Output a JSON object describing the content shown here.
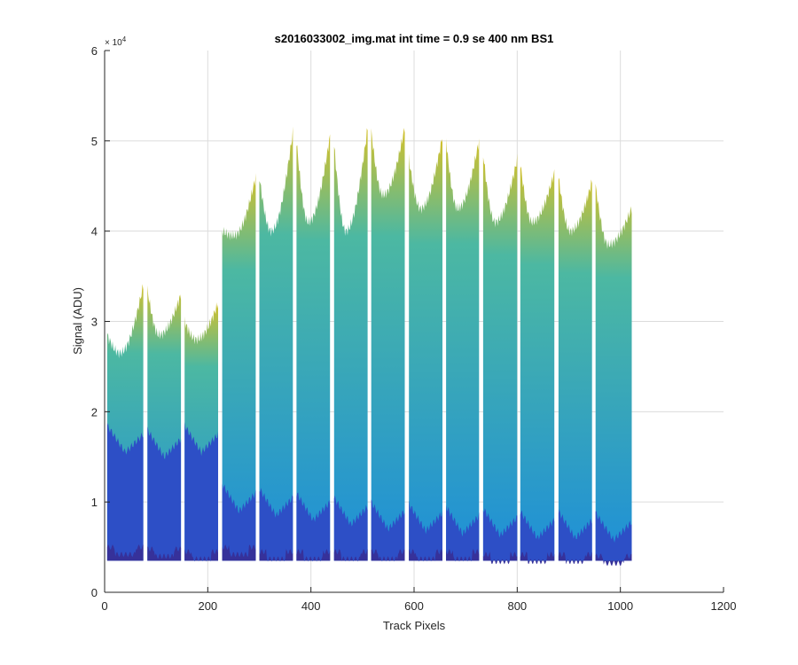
{
  "chart_data": {
    "type": "area",
    "title": "s2016033002_img.mat int time = 0.9 se  400 nm BS1",
    "xlabel": "Track Pixels",
    "ylabel": "Signal (ADU)",
    "xlim": [
      0,
      1200
    ],
    "ylim": [
      0,
      60000
    ],
    "x_ticks": [
      0,
      200,
      400,
      600,
      800,
      1000,
      1200
    ],
    "x_tick_labels": [
      "0",
      "200",
      "400",
      "600",
      "800",
      "1000",
      "1200"
    ],
    "y_ticks": [
      0,
      10000,
      20000,
      30000,
      40000,
      50000,
      60000
    ],
    "y_tick_labels": [
      "0",
      "1",
      "2",
      "3",
      "4",
      "5",
      "6"
    ],
    "y_exponent_label": "× 10",
    "y_exponent_power": "4",
    "grid": true,
    "baseline": 3500,
    "bands": [
      {
        "x0": 5,
        "x1": 75,
        "top_left": 28500,
        "top_min": 26500,
        "top_right": 34000,
        "mid": 15500,
        "low": 5000
      },
      {
        "x0": 83,
        "x1": 148,
        "top_left": 33500,
        "top_min": 28500,
        "top_right": 33000,
        "mid": 15000,
        "low": 4800
      },
      {
        "x0": 155,
        "x1": 220,
        "top_left": 30000,
        "top_min": 28000,
        "top_right": 32000,
        "mid": 15500,
        "low": 4500
      },
      {
        "x0": 228,
        "x1": 293,
        "top_left": 40000,
        "top_min": 39500,
        "top_right": 46000,
        "mid": 9000,
        "low": 5000
      },
      {
        "x0": 300,
        "x1": 365,
        "top_left": 46000,
        "top_min": 40000,
        "top_right": 51000,
        "mid": 8500,
        "low": 4500
      },
      {
        "x0": 372,
        "x1": 437,
        "top_left": 50000,
        "top_min": 41000,
        "top_right": 50500,
        "mid": 8000,
        "low": 4500
      },
      {
        "x0": 445,
        "x1": 510,
        "top_left": 49500,
        "top_min": 40000,
        "top_right": 51500,
        "mid": 7500,
        "low": 4500
      },
      {
        "x0": 517,
        "x1": 582,
        "top_left": 51000,
        "top_min": 44000,
        "top_right": 51500,
        "mid": 7000,
        "low": 4500
      },
      {
        "x0": 590,
        "x1": 655,
        "top_left": 48000,
        "top_min": 42500,
        "top_right": 50500,
        "mid": 6800,
        "low": 4500
      },
      {
        "x0": 662,
        "x1": 726,
        "top_left": 50000,
        "top_min": 42500,
        "top_right": 50000,
        "mid": 6500,
        "low": 4500
      },
      {
        "x0": 734,
        "x1": 800,
        "top_left": 48500,
        "top_min": 41000,
        "top_right": 48000,
        "mid": 6300,
        "low": 4200
      },
      {
        "x0": 806,
        "x1": 872,
        "top_left": 47500,
        "top_min": 41000,
        "top_right": 46500,
        "mid": 6000,
        "low": 4200
      },
      {
        "x0": 880,
        "x1": 945,
        "top_left": 46000,
        "top_min": 40000,
        "top_right": 45500,
        "mid": 6000,
        "low": 4200
      },
      {
        "x0": 952,
        "x1": 1022,
        "top_left": 45000,
        "top_min": 38500,
        "top_right": 42500,
        "mid": 5800,
        "low": 4000
      }
    ],
    "colors": {
      "top": "#1e8fd8",
      "top_high": "#4cb8a2",
      "peak": "#d4c12a",
      "mid": "#2d4fc6",
      "low": "#36319a",
      "grid": "#dcdcdc",
      "axis": "#262626"
    }
  }
}
